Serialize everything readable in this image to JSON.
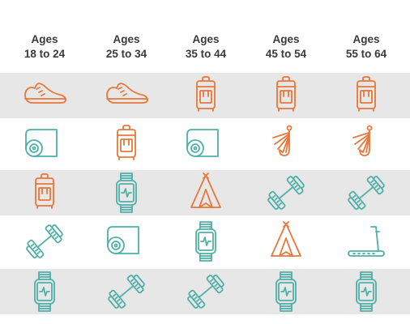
{
  "headers": [
    {
      "line1": "Ages",
      "line2": "18 to 24"
    },
    {
      "line1": "Ages",
      "line2": "25 to 34"
    },
    {
      "line1": "Ages",
      "line2": "35 to 44"
    },
    {
      "line1": "Ages",
      "line2": "45 to 54"
    },
    {
      "line1": "Ages",
      "line2": "55 to 64"
    }
  ],
  "colors": {
    "orange": "#e8773a",
    "teal": "#4fb0a8",
    "band": "#e7e7e7",
    "header_text": "#3a3a3a"
  },
  "rows": [
    [
      {
        "icon": "sneaker-icon",
        "color": "orange"
      },
      {
        "icon": "sneaker-icon",
        "color": "orange"
      },
      {
        "icon": "backpack-icon",
        "color": "orange"
      },
      {
        "icon": "backpack-icon",
        "color": "orange"
      },
      {
        "icon": "backpack-icon",
        "color": "orange"
      }
    ],
    [
      {
        "icon": "yoga-mat-icon",
        "color": "teal"
      },
      {
        "icon": "backpack-icon",
        "color": "orange"
      },
      {
        "icon": "yoga-mat-icon",
        "color": "teal"
      },
      {
        "icon": "fishing-hook-icon",
        "color": "orange"
      },
      {
        "icon": "fishing-hook-icon",
        "color": "orange"
      }
    ],
    [
      {
        "icon": "backpack-icon",
        "color": "orange"
      },
      {
        "icon": "fitness-watch-icon",
        "color": "teal"
      },
      {
        "icon": "tent-icon",
        "color": "orange"
      },
      {
        "icon": "dumbbell-icon",
        "color": "teal"
      },
      {
        "icon": "dumbbell-icon",
        "color": "teal"
      }
    ],
    [
      {
        "icon": "dumbbell-icon",
        "color": "teal"
      },
      {
        "icon": "yoga-mat-icon",
        "color": "teal"
      },
      {
        "icon": "fitness-watch-icon",
        "color": "teal"
      },
      {
        "icon": "tent-icon",
        "color": "orange"
      },
      {
        "icon": "treadmill-icon",
        "color": "teal"
      }
    ],
    [
      {
        "icon": "fitness-watch-icon",
        "color": "teal"
      },
      {
        "icon": "dumbbell-icon",
        "color": "teal"
      },
      {
        "icon": "dumbbell-icon",
        "color": "teal"
      },
      {
        "icon": "fitness-watch-icon",
        "color": "teal"
      },
      {
        "icon": "fitness-watch-icon",
        "color": "teal"
      }
    ]
  ]
}
